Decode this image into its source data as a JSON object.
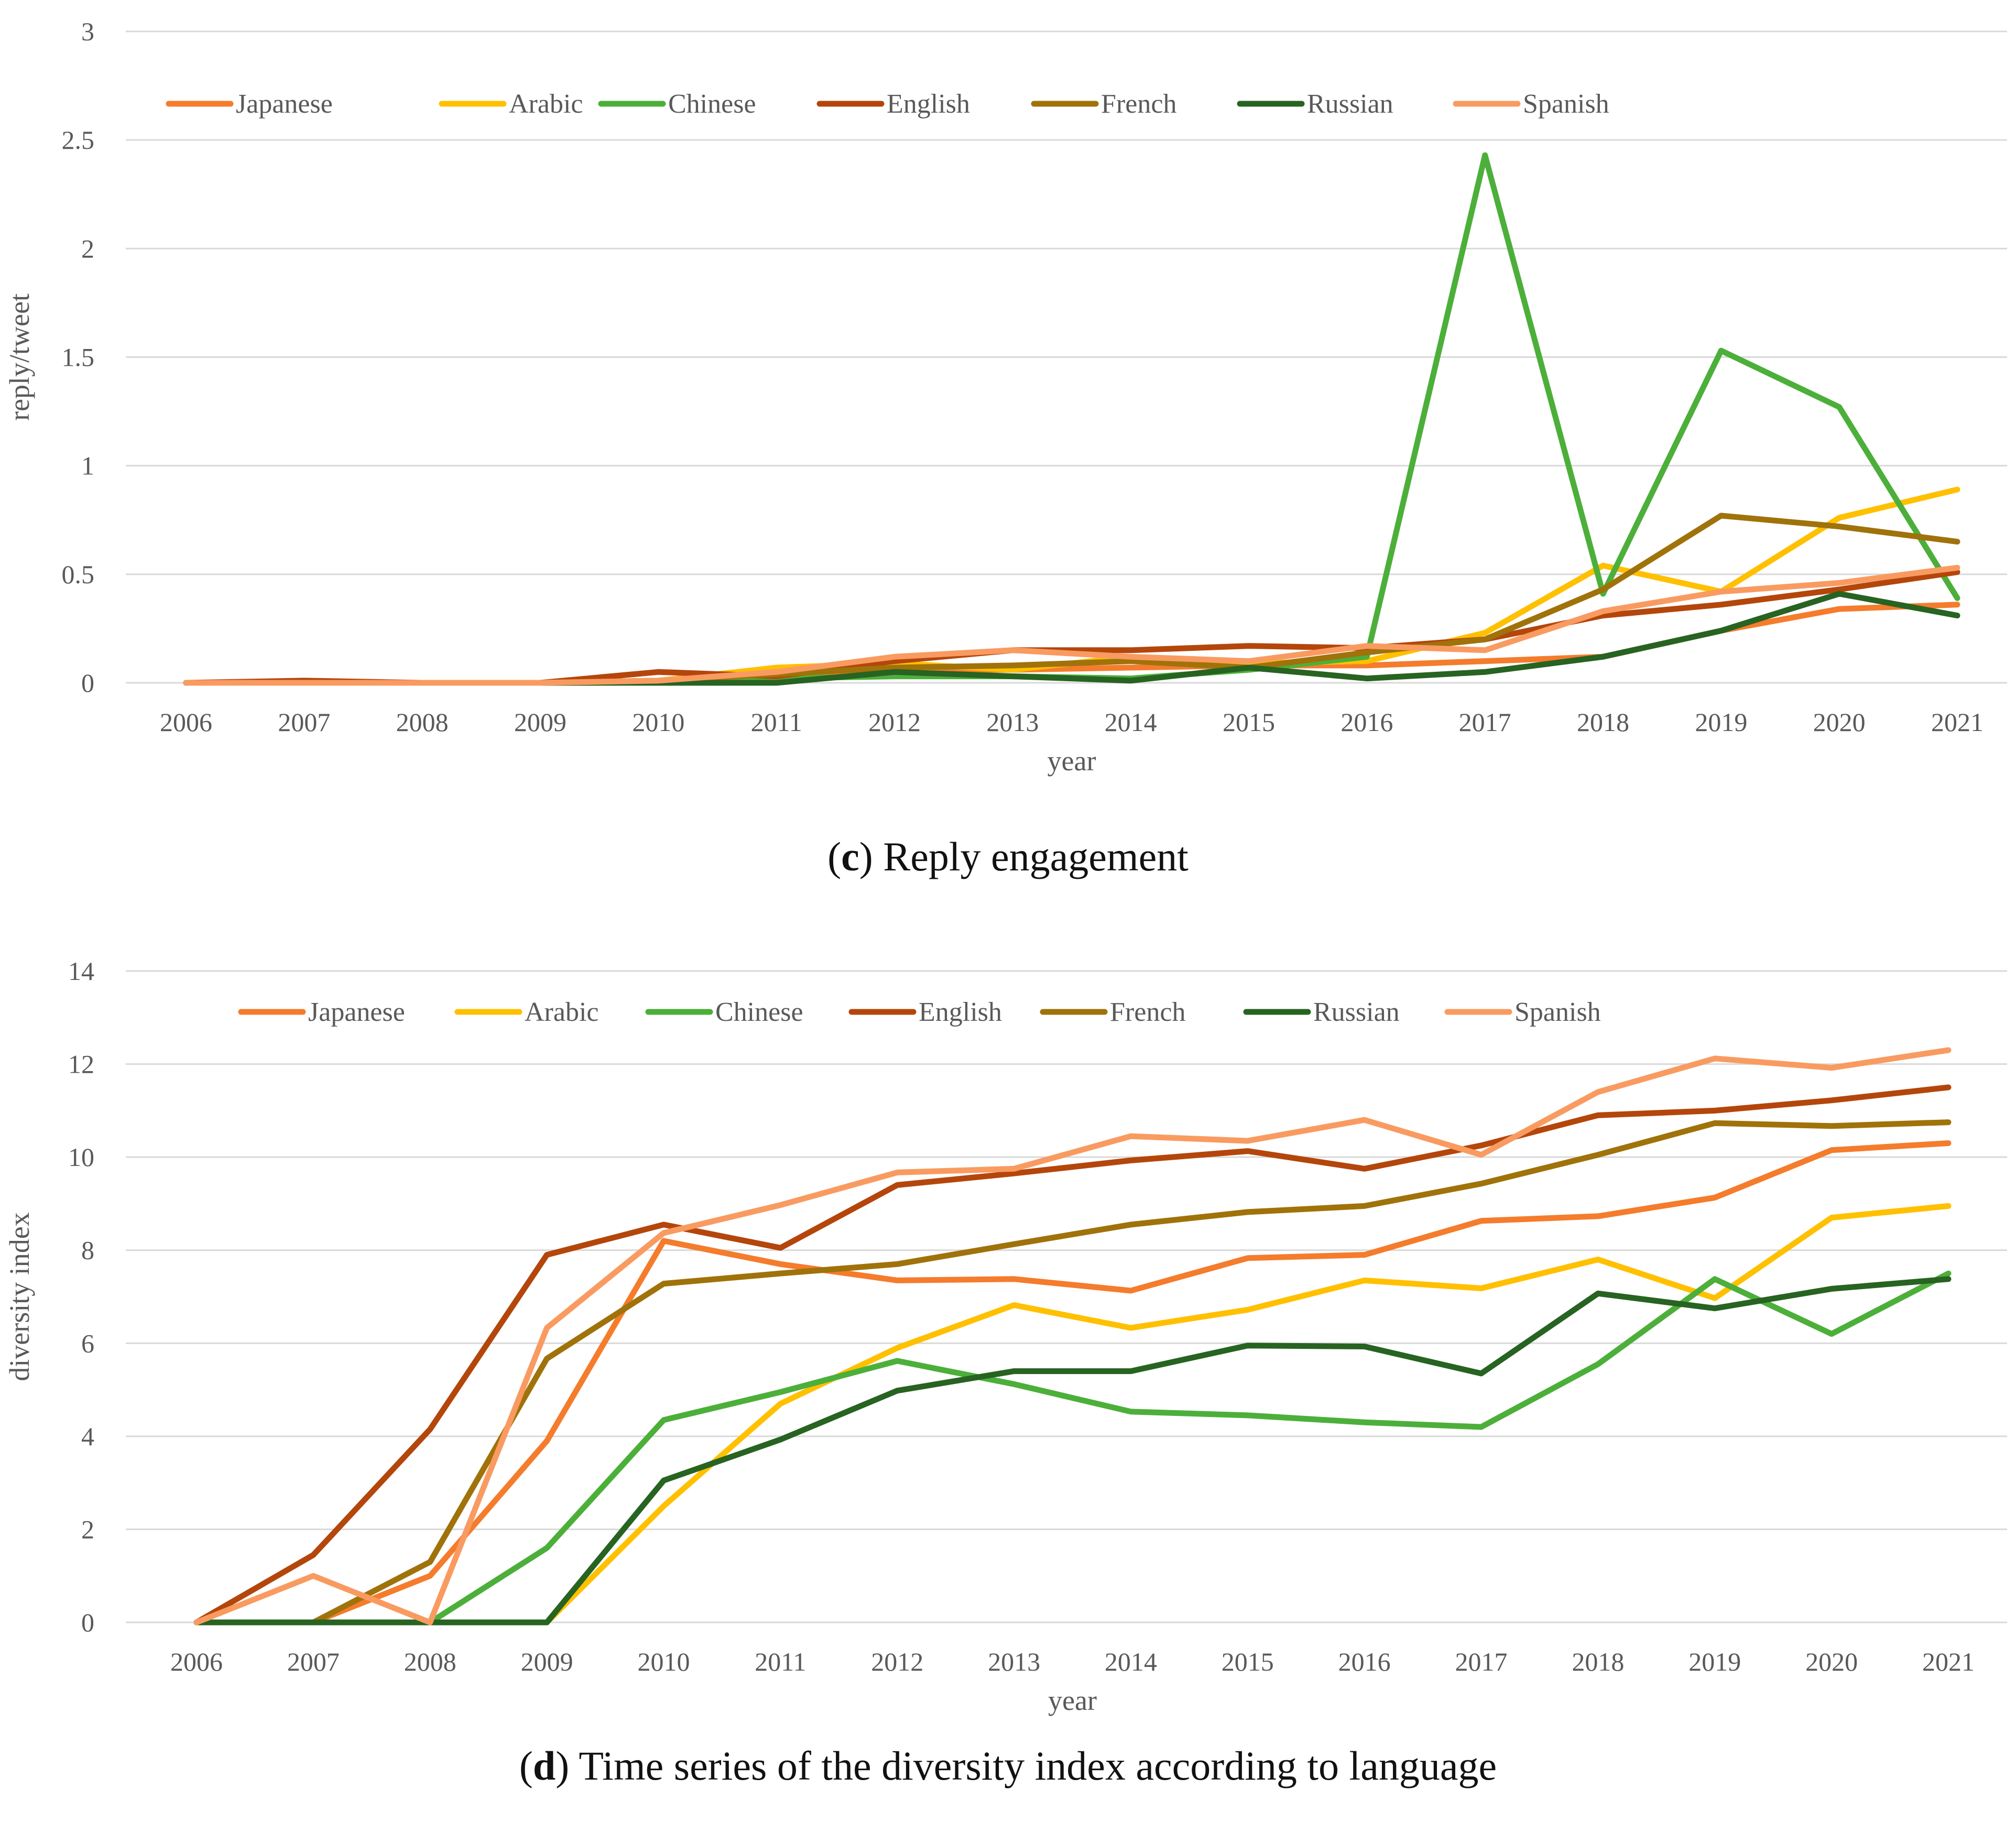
{
  "chart_data": [
    {
      "type": "line",
      "id": "c",
      "caption_letter": "c",
      "caption_text": "Reply engagement",
      "xlabel": "year",
      "ylabel": "reply/tweet",
      "ylim": [
        0,
        3
      ],
      "yticks": [
        "0",
        "0.5",
        "1",
        "1.5",
        "2",
        "2.5",
        "3"
      ],
      "ytick_values": [
        0,
        0.5,
        1,
        1.5,
        2,
        2.5,
        3
      ],
      "legend_position": "top",
      "grid": true,
      "categories": [
        "2006",
        "2007",
        "2008",
        "2009",
        "2010",
        "2011",
        "2012",
        "2013",
        "2014",
        "2015",
        "2016",
        "2017",
        "2018",
        "2019",
        "2020",
        "2021"
      ],
      "series": [
        {
          "name": "Japanese",
          "color": "#F47C2C",
          "values": [
            0,
            0,
            0,
            0,
            0,
            0.03,
            0.06,
            0.06,
            0.07,
            0.08,
            0.08,
            0.1,
            0.12,
            0.24,
            0.34,
            0.36
          ]
        },
        {
          "name": "Arabic",
          "color": "#FFC000",
          "values": [
            0,
            0,
            0,
            0,
            0.01,
            0.07,
            0.09,
            0.06,
            0.12,
            0.09,
            0.1,
            0.23,
            0.54,
            0.42,
            0.76,
            0.89
          ]
        },
        {
          "name": "Chinese",
          "color": "#4CAF3A",
          "values": [
            0,
            0,
            0,
            0,
            0.01,
            0.02,
            0.03,
            0.03,
            0.02,
            0.06,
            0.12,
            2.43,
            0.41,
            1.53,
            1.27,
            0.39
          ]
        },
        {
          "name": "English",
          "color": "#B4460B",
          "values": [
            0,
            0.01,
            0,
            0,
            0.05,
            0.03,
            0.1,
            0.15,
            0.15,
            0.17,
            0.16,
            0.2,
            0.31,
            0.36,
            0.43,
            0.51
          ]
        },
        {
          "name": "French",
          "color": "#A0720A",
          "values": [
            0,
            0,
            0,
            0,
            0.01,
            0.04,
            0.07,
            0.08,
            0.1,
            0.07,
            0.14,
            0.2,
            0.43,
            0.77,
            0.72,
            0.65
          ]
        },
        {
          "name": "Russian",
          "color": "#276321",
          "values": [
            0,
            0,
            0,
            0,
            0,
            0,
            0.05,
            0.03,
            0.01,
            0.07,
            0.02,
            0.05,
            0.12,
            0.24,
            0.41,
            0.31
          ]
        },
        {
          "name": "Spanish",
          "color": "#F99B61",
          "values": [
            0,
            0,
            0,
            0,
            0.01,
            0.05,
            0.12,
            0.15,
            0.12,
            0.1,
            0.17,
            0.15,
            0.33,
            0.42,
            0.46,
            0.53
          ]
        }
      ]
    },
    {
      "type": "line",
      "id": "d",
      "caption_letter": "d",
      "caption_text": "Time series of the diversity index according to language",
      "xlabel": "year",
      "ylabel": "diversity index",
      "ylim": [
        0,
        14
      ],
      "yticks": [
        "0",
        "2",
        "4",
        "6",
        "8",
        "10",
        "12",
        "14"
      ],
      "ytick_values": [
        0,
        2,
        4,
        6,
        8,
        10,
        12,
        14
      ],
      "legend_position": "top",
      "grid": true,
      "categories": [
        "2006",
        "2007",
        "2008",
        "2009",
        "2010",
        "2011",
        "2012",
        "2013",
        "2014",
        "2015",
        "2016",
        "2017",
        "2018",
        "2019",
        "2020",
        "2021"
      ],
      "series": [
        {
          "name": "Japanese",
          "color": "#F47C2C",
          "values": [
            0,
            0,
            1.0,
            3.9,
            8.2,
            7.7,
            7.35,
            7.38,
            7.13,
            7.83,
            7.9,
            8.63,
            8.73,
            9.13,
            10.15,
            10.3
          ]
        },
        {
          "name": "Arabic",
          "color": "#FFC000",
          "values": [
            0,
            0,
            0,
            0,
            2.5,
            4.7,
            5.9,
            6.82,
            6.33,
            6.72,
            7.35,
            7.18,
            7.8,
            6.97,
            8.7,
            8.95
          ]
        },
        {
          "name": "Chinese",
          "color": "#4CAF3A",
          "values": [
            0,
            0,
            0,
            1.6,
            4.35,
            4.95,
            5.62,
            5.12,
            4.53,
            4.45,
            4.3,
            4.2,
            5.55,
            7.38,
            6.2,
            7.5
          ]
        },
        {
          "name": "English",
          "color": "#B4460B",
          "values": [
            0,
            1.45,
            4.15,
            7.9,
            8.55,
            8.05,
            9.4,
            9.65,
            9.93,
            10.13,
            9.75,
            10.25,
            10.9,
            11.0,
            11.22,
            11.5
          ]
        },
        {
          "name": "French",
          "color": "#A0720A",
          "values": [
            0,
            0,
            1.3,
            5.67,
            7.28,
            7.5,
            7.7,
            8.13,
            8.55,
            8.82,
            8.95,
            9.43,
            10.05,
            10.73,
            10.67,
            10.75
          ]
        },
        {
          "name": "Russian",
          "color": "#276321",
          "values": [
            0,
            0,
            0,
            0,
            3.05,
            3.93,
            4.98,
            5.4,
            5.4,
            5.95,
            5.93,
            5.35,
            7.07,
            6.75,
            7.17,
            7.38
          ]
        },
        {
          "name": "Spanish",
          "color": "#F99B61",
          "values": [
            0,
            1.0,
            0,
            6.33,
            8.37,
            8.97,
            9.67,
            9.75,
            10.45,
            10.35,
            10.8,
            10.05,
            11.4,
            12.12,
            11.92,
            12.3
          ]
        }
      ]
    }
  ]
}
